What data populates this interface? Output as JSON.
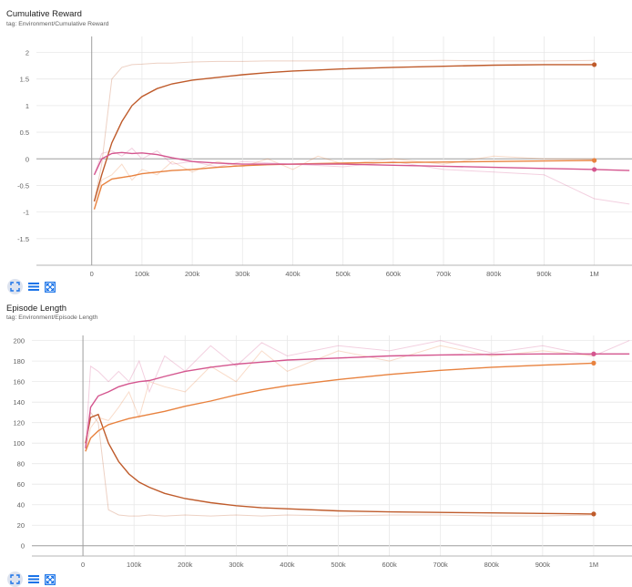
{
  "charts": [
    {
      "title": "Cumulative Reward",
      "tag": "tag: Environment/Cumulative Reward"
    },
    {
      "title": "Episode Length",
      "tag": "tag: Environment/Episode Length"
    }
  ],
  "chart_data": [
    {
      "type": "line",
      "title": "Cumulative Reward",
      "subtitle": "tag: Environment/Cumulative Reward",
      "xlabel": "",
      "ylabel": "",
      "xlim": [
        -110000,
        1075000
      ],
      "ylim": [
        -2,
        2.3
      ],
      "xticks": [
        0,
        100000,
        200000,
        300000,
        400000,
        500000,
        600000,
        700000,
        800000,
        900000,
        1000000
      ],
      "xtick_labels": [
        "0",
        "100k",
        "200k",
        "300k",
        "400k",
        "500k",
        "600k",
        "700k",
        "800k",
        "900k",
        "1M"
      ],
      "yticks": [
        2,
        1.5,
        1,
        0.5,
        0,
        -0.5,
        -1,
        -1.5
      ],
      "ytick_labels": [
        "2",
        "1.5",
        "1",
        "0.5",
        "0",
        "-0.5",
        "-1",
        "-1.5"
      ],
      "grid": true,
      "series": [
        {
          "color": "#bf5b2b",
          "x": [
            5000,
            20000,
            40000,
            60000,
            80000,
            100000,
            130000,
            160000,
            200000,
            250000,
            300000,
            350000,
            400000,
            450000,
            500000,
            600000,
            700000,
            800000,
            900000,
            1000000
          ],
          "values": [
            -0.8,
            -0.3,
            0.3,
            0.7,
            1.0,
            1.17,
            1.32,
            1.41,
            1.48,
            1.53,
            1.58,
            1.62,
            1.65,
            1.67,
            1.69,
            1.72,
            1.74,
            1.76,
            1.77,
            1.77
          ],
          "raw_values": [
            -0.8,
            -0.1,
            1.5,
            1.72,
            1.77,
            1.78,
            1.8,
            1.8,
            1.82,
            1.83,
            1.83,
            1.84,
            1.84,
            1.84,
            1.84,
            1.84,
            1.85,
            1.84,
            1.84,
            1.85
          ]
        },
        {
          "color": "#e8823f",
          "x": [
            5000,
            20000,
            40000,
            60000,
            80000,
            100000,
            130000,
            160000,
            200000,
            250000,
            300000,
            350000,
            400000,
            450000,
            500000,
            600000,
            700000,
            800000,
            900000,
            1000000
          ],
          "values": [
            -0.95,
            -0.5,
            -0.38,
            -0.35,
            -0.32,
            -0.28,
            -0.25,
            -0.22,
            -0.2,
            -0.16,
            -0.13,
            -0.11,
            -0.1,
            -0.09,
            -0.08,
            -0.07,
            -0.06,
            -0.05,
            -0.04,
            -0.03
          ],
          "raw_values": [
            -0.95,
            -0.4,
            -0.3,
            -0.1,
            -0.4,
            -0.2,
            -0.3,
            -0.05,
            -0.25,
            -0.05,
            -0.15,
            0.0,
            -0.2,
            0.05,
            -0.1,
            0.0,
            -0.1,
            0.05,
            0.0,
            0.0
          ]
        },
        {
          "color": "#d4568f",
          "x": [
            5000,
            20000,
            40000,
            60000,
            80000,
            100000,
            130000,
            160000,
            200000,
            250000,
            300000,
            400000,
            500000,
            600000,
            700000,
            800000,
            900000,
            1000000,
            1070000
          ],
          "values": [
            -0.3,
            0.0,
            0.1,
            0.12,
            0.1,
            0.11,
            0.08,
            0.02,
            -0.05,
            -0.08,
            -0.1,
            -0.1,
            -0.1,
            -0.12,
            -0.14,
            -0.16,
            -0.18,
            -0.2,
            -0.22
          ],
          "raw_values": [
            -0.3,
            0.1,
            0.15,
            0.05,
            0.2,
            0.0,
            0.15,
            -0.1,
            -0.05,
            -0.15,
            -0.05,
            -0.1,
            -0.15,
            -0.05,
            -0.2,
            -0.25,
            -0.3,
            -0.75,
            -0.85
          ]
        }
      ]
    },
    {
      "type": "line",
      "title": "Episode Length",
      "subtitle": "tag: Environment/Episode Length",
      "xlabel": "",
      "ylabel": "",
      "xlim": [
        -100000,
        1075000
      ],
      "ylim": [
        -10,
        205
      ],
      "xticks": [
        0,
        100000,
        200000,
        300000,
        400000,
        500000,
        600000,
        700000,
        800000,
        900000,
        1000000
      ],
      "xtick_labels": [
        "0",
        "100k",
        "200k",
        "300k",
        "400k",
        "500k",
        "600k",
        "700k",
        "800k",
        "900k",
        "1M"
      ],
      "yticks": [
        200,
        180,
        160,
        140,
        120,
        100,
        80,
        60,
        40,
        20,
        0
      ],
      "ytick_labels": [
        "200",
        "180",
        "160",
        "140",
        "120",
        "100",
        "80",
        "60",
        "40",
        "20",
        "0"
      ],
      "grid": true,
      "series": [
        {
          "color": "#bf5b2b",
          "x": [
            5000,
            15000,
            30000,
            50000,
            70000,
            90000,
            110000,
            130000,
            160000,
            200000,
            250000,
            300000,
            350000,
            400000,
            500000,
            600000,
            700000,
            800000,
            900000,
            1000000
          ],
          "values": [
            100,
            125,
            128,
            100,
            82,
            70,
            62,
            57,
            51,
            46,
            42,
            39,
            37,
            36,
            34,
            33,
            32.5,
            32,
            31.5,
            31
          ],
          "raw_values": [
            95,
            130,
            120,
            35,
            30,
            29,
            29,
            30,
            29,
            30,
            29,
            30,
            29,
            30,
            29,
            30,
            30,
            29,
            29,
            30
          ]
        },
        {
          "color": "#e8823f",
          "x": [
            5000,
            15000,
            30000,
            50000,
            70000,
            90000,
            110000,
            130000,
            160000,
            200000,
            250000,
            300000,
            350000,
            400000,
            500000,
            600000,
            700000,
            800000,
            900000,
            1000000
          ],
          "values": [
            92,
            105,
            112,
            118,
            121,
            124,
            126,
            128,
            131,
            136,
            141,
            147,
            152,
            156,
            162,
            167,
            171,
            174,
            176,
            178
          ],
          "raw_values": [
            92,
            115,
            125,
            122,
            135,
            150,
            125,
            160,
            155,
            150,
            175,
            160,
            190,
            170,
            190,
            180,
            195,
            185,
            190,
            185
          ]
        },
        {
          "color": "#d4568f",
          "x": [
            5000,
            15000,
            30000,
            50000,
            70000,
            90000,
            110000,
            130000,
            160000,
            200000,
            250000,
            300000,
            350000,
            400000,
            500000,
            600000,
            700000,
            800000,
            900000,
            1000000,
            1070000
          ],
          "values": [
            95,
            135,
            146,
            150,
            155,
            158,
            160,
            161,
            165,
            170,
            174,
            177,
            179,
            181,
            183,
            185,
            186,
            186.5,
            187,
            187,
            187
          ],
          "raw_values": [
            95,
            175,
            170,
            160,
            170,
            160,
            180,
            150,
            185,
            170,
            195,
            175,
            198,
            185,
            195,
            190,
            200,
            188,
            195,
            185,
            200
          ]
        }
      ]
    }
  ],
  "toolbar_icons": [
    "fit-domain-icon",
    "toggle-log-icon",
    "expand-icon"
  ],
  "colors": {
    "grid": "#e8e8e8",
    "axis": "#9e9e9e",
    "zero_line": "#9e9e9e",
    "tick_text": "#616161",
    "toolbar_icon": "#1a73e8"
  }
}
